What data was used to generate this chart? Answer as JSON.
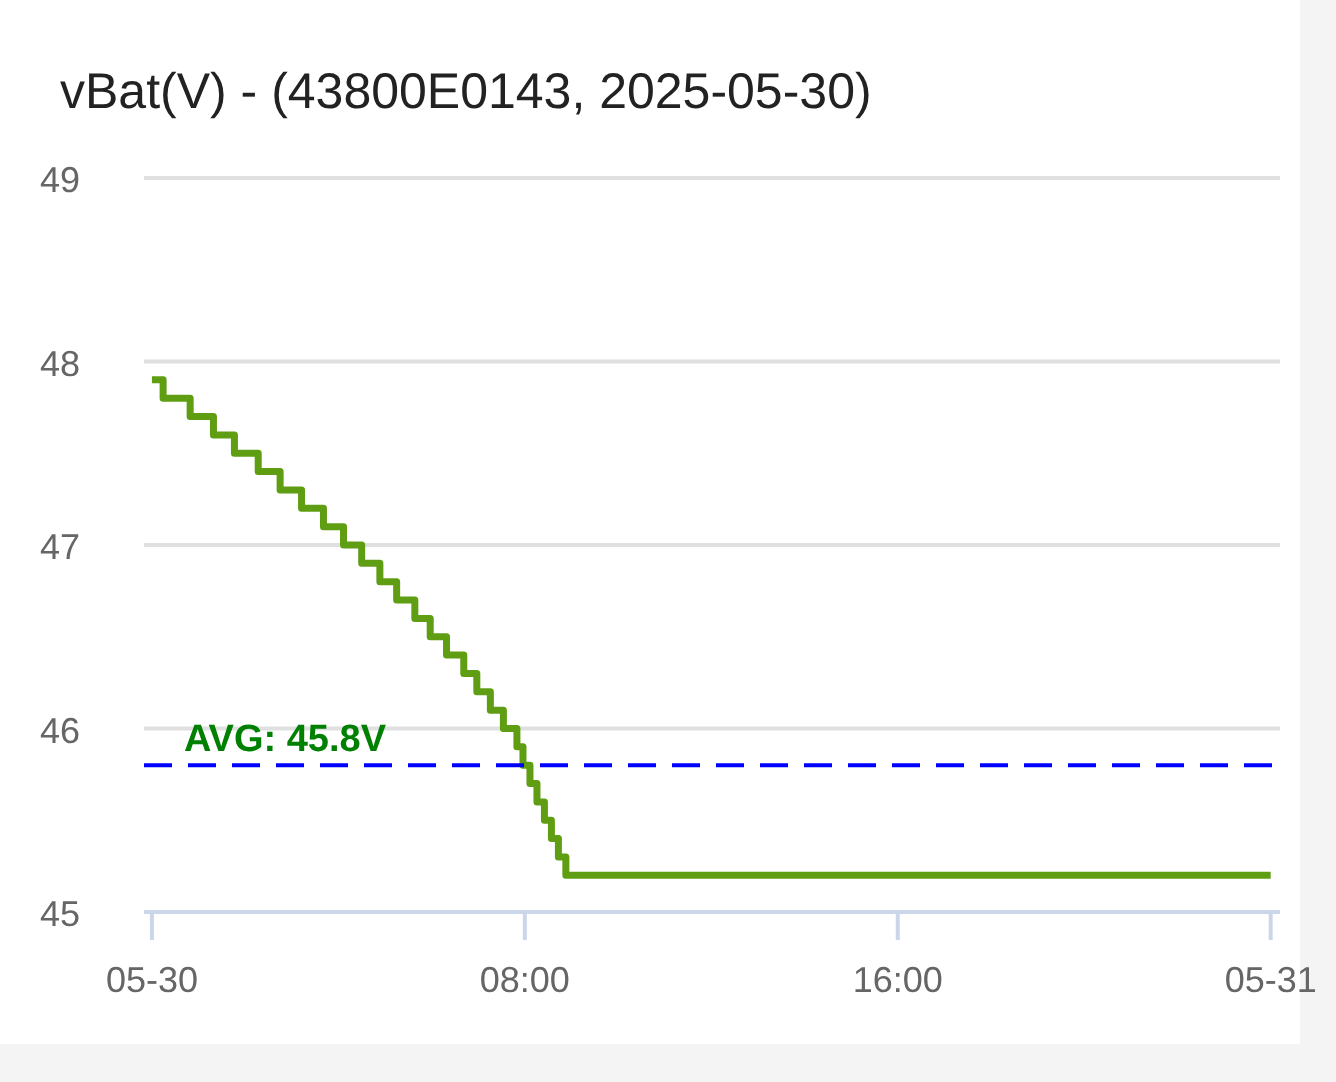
{
  "chart_data": {
    "type": "step",
    "title": "vBat(V) - (43800E0143, 2025-05-30)",
    "x": [
      0,
      0.24,
      0.82,
      1.32,
      1.77,
      2.28,
      2.75,
      3.21,
      3.68,
      4.11,
      4.5,
      4.89,
      5.25,
      5.64,
      5.97,
      6.32,
      6.69,
      6.97,
      7.26,
      7.54,
      7.83,
      7.96,
      8.11,
      8.26,
      8.42,
      8.57,
      8.72,
      8.88,
      24
    ],
    "series": [
      {
        "color": "#5f9e12",
        "values": [
          47.9,
          47.8,
          47.7,
          47.6,
          47.5,
          47.4,
          47.3,
          47.2,
          47.1,
          47.0,
          46.9,
          46.8,
          46.7,
          46.6,
          46.5,
          46.4,
          46.3,
          46.2,
          46.1,
          46.0,
          45.9,
          45.8,
          45.7,
          45.6,
          45.5,
          45.4,
          45.3,
          45.2,
          45.2
        ]
      }
    ],
    "xlim": [
      -0.17,
      24.2
    ],
    "xticks": [
      {
        "value": 0,
        "label": "05-30"
      },
      {
        "value": 8,
        "label": "08:00"
      },
      {
        "value": 16,
        "label": "16:00"
      },
      {
        "value": 24,
        "label": "05-31"
      }
    ],
    "ylim": [
      45,
      49
    ],
    "yticks": [
      45,
      46,
      47,
      48,
      49
    ],
    "grid": "y",
    "ref_lines": [
      {
        "axis": "y",
        "value": 45.8,
        "label": "AVG: 45.8V",
        "color": "#0000ff",
        "line_style": "dashed"
      }
    ]
  }
}
